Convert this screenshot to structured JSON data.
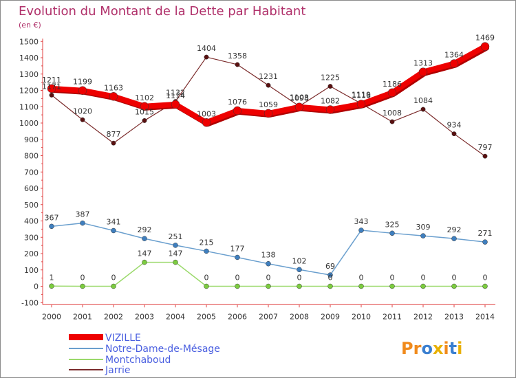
{
  "chart_data": {
    "type": "line",
    "title": "Evolution du Montant de la Dette par Habitant",
    "unit_label": "(en €)",
    "x": [
      "2000",
      "2001",
      "2002",
      "2003",
      "2004",
      "2005",
      "2006",
      "2007",
      "2008",
      "2009",
      "2010",
      "2011",
      "2012",
      "2013",
      "2014"
    ],
    "ylim": [
      -100,
      1500
    ],
    "yticks": [
      -100,
      0,
      100,
      200,
      300,
      400,
      500,
      600,
      700,
      800,
      900,
      1000,
      1100,
      1200,
      1300,
      1400,
      1500
    ],
    "grid": false,
    "legend_position": "bottom-left",
    "series": [
      {
        "name": "VIZILLE",
        "color": "#ee0000",
        "marker": "#ee0000",
        "values": [
          1211,
          1199,
          1163,
          1102,
          1114,
          1003,
          1076,
          1059,
          1098,
          1082,
          1116,
          1186,
          1313,
          1364,
          1469
        ]
      },
      {
        "name": "Notre-Dame-de-Mésage",
        "color": "#6a9fce",
        "marker": "#3f7fbf",
        "values": [
          367,
          387,
          341,
          292,
          251,
          215,
          177,
          138,
          102,
          69,
          343,
          325,
          309,
          292,
          271
        ]
      },
      {
        "name": "Montchaboud",
        "color": "#9ad96a",
        "marker": "#7ccc3f",
        "values": [
          1,
          0,
          0,
          147,
          147,
          0,
          0,
          0,
          0,
          0,
          0,
          0,
          0,
          0,
          0
        ]
      },
      {
        "name": "Jarrie",
        "color": "#7b2b2b",
        "marker": "#5a1010",
        "values": [
          1171,
          1020,
          877,
          1015,
          1132,
          1404,
          1358,
          1231,
          1103,
          1225,
          1119,
          1008,
          1084,
          934,
          797
        ]
      }
    ]
  },
  "logo": {
    "text": "Proxiti"
  }
}
